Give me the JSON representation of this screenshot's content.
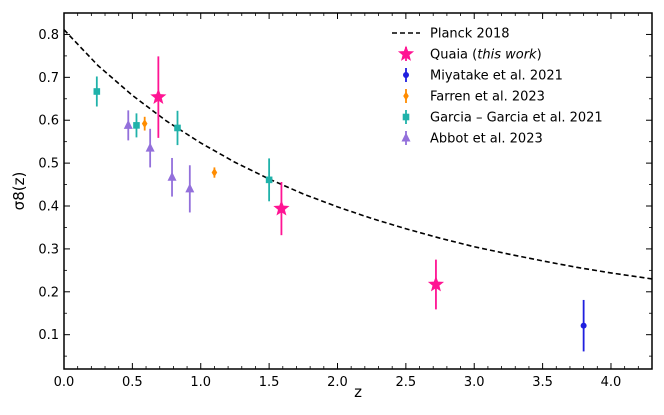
{
  "chart_data": {
    "type": "scatter",
    "title": "",
    "xlabel": "z",
    "ylabel": "σ8(z)",
    "xlim": [
      0.0,
      4.3
    ],
    "ylim": [
      0.02,
      0.85
    ],
    "x_ticks": [
      "0.0",
      "0.5",
      "1.0",
      "1.5",
      "2.0",
      "2.5",
      "3.0",
      "3.5",
      "4.0"
    ],
    "y_ticks": [
      "0.1",
      "0.2",
      "0.3",
      "0.4",
      "0.5",
      "0.6",
      "0.7",
      "0.8"
    ],
    "legend_position": "top-right",
    "curve": {
      "name": "Planck 2018",
      "style": "dashed",
      "color": "#000000",
      "points": [
        [
          0.0,
          0.811
        ],
        [
          0.25,
          0.727
        ],
        [
          0.5,
          0.658
        ],
        [
          0.75,
          0.598
        ],
        [
          1.0,
          0.547
        ],
        [
          1.25,
          0.502
        ],
        [
          1.5,
          0.463
        ],
        [
          1.75,
          0.428
        ],
        [
          2.0,
          0.398
        ],
        [
          2.25,
          0.371
        ],
        [
          2.5,
          0.347
        ],
        [
          2.75,
          0.325
        ],
        [
          3.0,
          0.305
        ],
        [
          3.25,
          0.288
        ],
        [
          3.5,
          0.272
        ],
        [
          3.75,
          0.257
        ],
        [
          4.0,
          0.244
        ],
        [
          4.3,
          0.23
        ]
      ]
    },
    "series": [
      {
        "name": "Quaia",
        "name_suffix": "this work",
        "marker": "star",
        "color": "#ff1493",
        "points": [
          {
            "x": 0.69,
            "y": 0.654,
            "yerr": 0.095
          },
          {
            "x": 1.59,
            "y": 0.394,
            "yerr": 0.062
          },
          {
            "x": 2.72,
            "y": 0.217,
            "yerr": 0.058
          }
        ]
      },
      {
        "name": "Miyatake et al. 2021",
        "marker": "circle",
        "color": "#1f1fdf",
        "points": [
          {
            "x": 3.8,
            "y": 0.121,
            "yerr": 0.06
          }
        ]
      },
      {
        "name": "Farren et al. 2023",
        "marker": "diamond",
        "color": "#ff8c00",
        "points": [
          {
            "x": 0.59,
            "y": 0.592,
            "yerr": 0.016
          },
          {
            "x": 1.1,
            "y": 0.478,
            "yerr": 0.012
          }
        ]
      },
      {
        "name": "Garcia – Garcia et al. 2021",
        "marker": "square",
        "color": "#20b2aa",
        "points": [
          {
            "x": 0.24,
            "y": 0.667,
            "yerr": 0.035
          },
          {
            "x": 0.53,
            "y": 0.588,
            "yerr": 0.028
          },
          {
            "x": 0.83,
            "y": 0.582,
            "yerr": 0.04
          },
          {
            "x": 1.5,
            "y": 0.461,
            "yerr": 0.05
          }
        ]
      },
      {
        "name": "Abbot et al. 2023",
        "marker": "triangle",
        "color": "#9370db",
        "points": [
          {
            "x": 0.47,
            "y": 0.588,
            "yerr": 0.035
          },
          {
            "x": 0.63,
            "y": 0.535,
            "yerr": 0.045
          },
          {
            "x": 0.79,
            "y": 0.467,
            "yerr": 0.045
          },
          {
            "x": 0.92,
            "y": 0.44,
            "yerr": 0.055
          }
        ]
      }
    ]
  }
}
